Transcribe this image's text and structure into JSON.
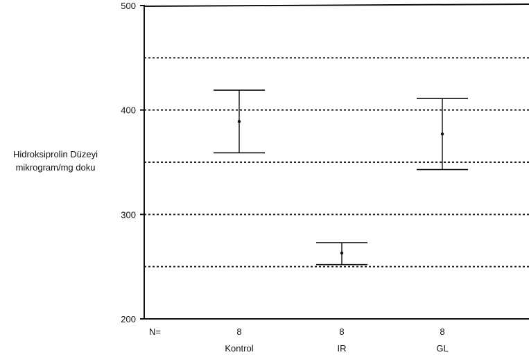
{
  "chart_data": {
    "type": "errorbar",
    "title": "",
    "ylabel_lines": [
      "Hidroksiprolin Düzeyi",
      "mikrogram/mg doku"
    ],
    "xlabel": "",
    "ylim": [
      200,
      500
    ],
    "yticks": [
      200,
      300,
      400,
      500
    ],
    "grid_lines": [
      250,
      300,
      350,
      400,
      450
    ],
    "n_label": "N=",
    "categories": [
      "Kontrol",
      "IR",
      "GL"
    ],
    "n_values": [
      "8",
      "8",
      "8"
    ],
    "means": [
      389,
      263,
      377
    ],
    "lower": [
      359,
      252,
      343
    ],
    "upper": [
      419,
      273,
      411
    ],
    "grid": "dotted horizontal",
    "legend": "none"
  }
}
